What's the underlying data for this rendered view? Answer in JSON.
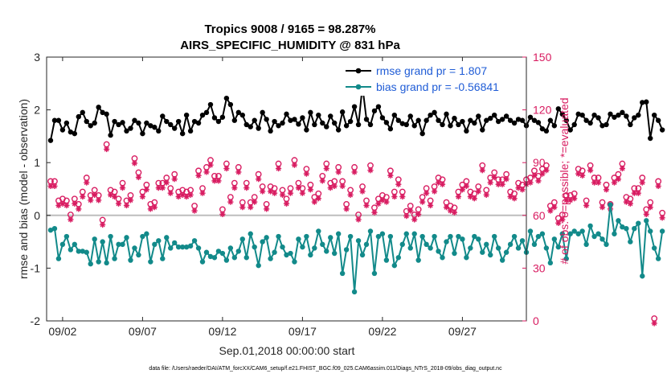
{
  "chart_data": {
    "type": "line",
    "title": "Tropics 9008 / 9165 = 98.287%",
    "subtitle": "AIRS_SPECIFIC_HUMIDITY @ 831 hPa",
    "xlabel": "Sep.01,2018 00:00:00 start",
    "ylabel": "rmse and bias (model - observation)",
    "y2label": "# of obs: o=possible; *=evaluated",
    "footer": "data file: /Users/raeder/DAI/ATM_forcXX/CAM6_setup/f.e21.FHIST_BGC.f09_025.CAM6assim.011/Diags_NTrS_2018-09/obs_diag_output.nc",
    "x_ticks": [
      "09/02",
      "09/07",
      "09/12",
      "09/17",
      "09/22",
      "09/27"
    ],
    "x_tick_days": [
      2,
      7,
      12,
      17,
      22,
      27
    ],
    "xlim": [
      1,
      31
    ],
    "ylim": [
      -2,
      3
    ],
    "y_ticks": [
      "-2",
      "-1",
      "0",
      "1",
      "2",
      "3"
    ],
    "y2lim": [
      0,
      150
    ],
    "y2_ticks": [
      "0",
      "30",
      "60",
      "90",
      "120",
      "150"
    ],
    "colors": {
      "rmse": "#000000",
      "bias": "#128a8a",
      "obs": "#d81b60",
      "axis2": "#d81b60",
      "zero": "#bdbdbd",
      "legend_text": "#1f5cd6"
    },
    "x_start": 1.25,
    "x_step": 0.25,
    "series": [
      {
        "name": "rmse grand pr = 1.807",
        "key": "rmse",
        "values": [
          1.42,
          1.8,
          1.8,
          1.62,
          1.75,
          1.58,
          1.55,
          1.87,
          1.95,
          1.78,
          1.7,
          1.75,
          2.05,
          1.95,
          1.92,
          1.52,
          1.78,
          1.72,
          1.76,
          1.6,
          1.65,
          1.8,
          1.75,
          1.55,
          1.75,
          1.7,
          1.67,
          1.6,
          1.88,
          1.78,
          1.72,
          1.65,
          1.78,
          1.55,
          1.9,
          1.6,
          1.78,
          1.75,
          1.9,
          1.95,
          2.1,
          1.85,
          1.78,
          1.86,
          2.22,
          2.1,
          1.8,
          1.95,
          1.9,
          1.72,
          1.68,
          1.8,
          1.65,
          1.95,
          1.82,
          1.6,
          1.78,
          1.7,
          1.75,
          1.92,
          1.8,
          1.82,
          1.73,
          1.85,
          1.62,
          1.95,
          1.72,
          1.9,
          1.75,
          1.68,
          1.88,
          1.75,
          1.62,
          1.96,
          1.7,
          1.78,
          2.06,
          1.72,
          2.45,
          1.82,
          1.72,
          1.98,
          2.06,
          1.85,
          1.76,
          1.64,
          1.9,
          1.8,
          1.74,
          1.72,
          1.88,
          1.7,
          1.8,
          1.55,
          1.8,
          1.9,
          1.95,
          1.8,
          1.72,
          1.92,
          1.7,
          1.84,
          1.72,
          1.78,
          1.6,
          1.8,
          1.75,
          1.88,
          1.62,
          1.8,
          1.84,
          1.9,
          1.78,
          1.82,
          1.88,
          1.8,
          1.75,
          1.82,
          1.8,
          1.7,
          1.86,
          1.8,
          1.76,
          1.64,
          1.6,
          1.8,
          1.7,
          2.02,
          1.92,
          1.8,
          1.62,
          1.72,
          1.92,
          1.9,
          1.8,
          1.75,
          1.9,
          1.85,
          1.7,
          1.72,
          1.92,
          1.86,
          1.9,
          1.95,
          1.88,
          1.72,
          1.85,
          1.9,
          2.14,
          2.15,
          1.46,
          1.9,
          1.8,
          1.62
        ]
      },
      {
        "name": "bias grand pr = -0.56841",
        "key": "bias",
        "values": [
          -0.28,
          -0.25,
          -0.82,
          -0.55,
          -0.4,
          -0.65,
          -0.55,
          -0.68,
          -0.68,
          -0.7,
          -0.92,
          -0.45,
          -0.88,
          -0.5,
          -0.9,
          -0.4,
          -0.82,
          -0.55,
          -0.55,
          -0.42,
          -0.85,
          -0.62,
          -0.75,
          -0.4,
          -0.35,
          -0.88,
          -0.55,
          -0.48,
          -0.82,
          -0.42,
          -0.62,
          -0.52,
          -0.6,
          -0.6,
          -0.6,
          -0.58,
          -0.48,
          -0.62,
          -0.88,
          -0.7,
          -0.78,
          -0.8,
          -0.68,
          -0.72,
          -0.85,
          -0.62,
          -0.8,
          -0.68,
          -0.45,
          -0.8,
          -0.35,
          -0.6,
          -0.95,
          -0.5,
          -0.42,
          -0.82,
          -0.7,
          -0.4,
          -0.6,
          -0.75,
          -0.72,
          -0.88,
          -0.45,
          -0.6,
          -0.4,
          -0.75,
          -0.62,
          -0.3,
          -0.55,
          -0.68,
          -0.42,
          -0.72,
          -0.35,
          -1.1,
          -0.65,
          -0.4,
          -1.45,
          -0.48,
          -0.75,
          -0.55,
          -0.3,
          -1.1,
          -0.4,
          -0.35,
          -0.85,
          -0.4,
          -0.95,
          -0.8,
          -0.55,
          -0.35,
          -0.62,
          -0.35,
          -0.85,
          -0.4,
          -0.55,
          -0.62,
          -0.4,
          -0.68,
          -0.8,
          -0.5,
          -0.4,
          -0.72,
          -0.4,
          -0.45,
          -0.8,
          -0.62,
          -0.4,
          -0.45,
          -0.7,
          -0.55,
          -0.75,
          -0.4,
          -0.62,
          -0.85,
          -0.7,
          -0.55,
          -0.4,
          -0.62,
          -0.48,
          -0.7,
          -0.3,
          -0.55,
          -0.4,
          -0.35,
          -0.62,
          -0.9,
          -0.45,
          -0.6,
          -0.35,
          -0.82,
          -0.35,
          -0.3,
          -0.35,
          -0.3,
          -0.55,
          -0.2,
          -0.4,
          -0.35,
          -0.45,
          -0.55,
          0.2,
          -0.35,
          -0.1,
          -0.22,
          -0.25,
          -0.5,
          -0.25,
          -0.15,
          -1.15,
          -0.1,
          -0.3,
          -0.62,
          -0.82,
          -0.3
        ]
      },
      {
        "name": "# of obs possible / evaluated",
        "key": "obs",
        "values": [
          78,
          78,
          67,
          68,
          67,
          59,
          68,
          65,
          72,
          80,
          70,
          73,
          70,
          56,
          99,
          73,
          72,
          68,
          77,
          67,
          70,
          91,
          83,
          72,
          76,
          65,
          66,
          77,
          77,
          80,
          74,
          82,
          72,
          73,
          72,
          73,
          64,
          84,
          74,
          86,
          90,
          81,
          81,
          62,
          88,
          69,
          77,
          86,
          66,
          77,
          66,
          69,
          82,
          75,
          65,
          75,
          74,
          88,
          73,
          68,
          74,
          90,
          77,
          74,
          85,
          76,
          69,
          71,
          81,
          88,
          77,
          78,
          86,
          78,
          65,
          73,
          86,
          59,
          75,
          67,
          87,
          63,
          68,
          70,
          69,
          84,
          72,
          79,
          72,
          61,
          64,
          59,
          62,
          69,
          74,
          67,
          75,
          80,
          79,
          66,
          64,
          63,
          72,
          76,
          78,
          72,
          71,
          75,
          87,
          73,
          80,
          83,
          79,
          79,
          82,
          72,
          71,
          77,
          76,
          79,
          80,
          84,
          81,
          85,
          87,
          64,
          66,
          57,
          59,
          70,
          70,
          71,
          85,
          84,
          67,
          87,
          80,
          80,
          66,
          76,
          65,
          80,
          82,
          88,
          69,
          68,
          74,
          74,
          80,
          62,
          66,
          0,
          78,
          60
        ]
      }
    ]
  }
}
